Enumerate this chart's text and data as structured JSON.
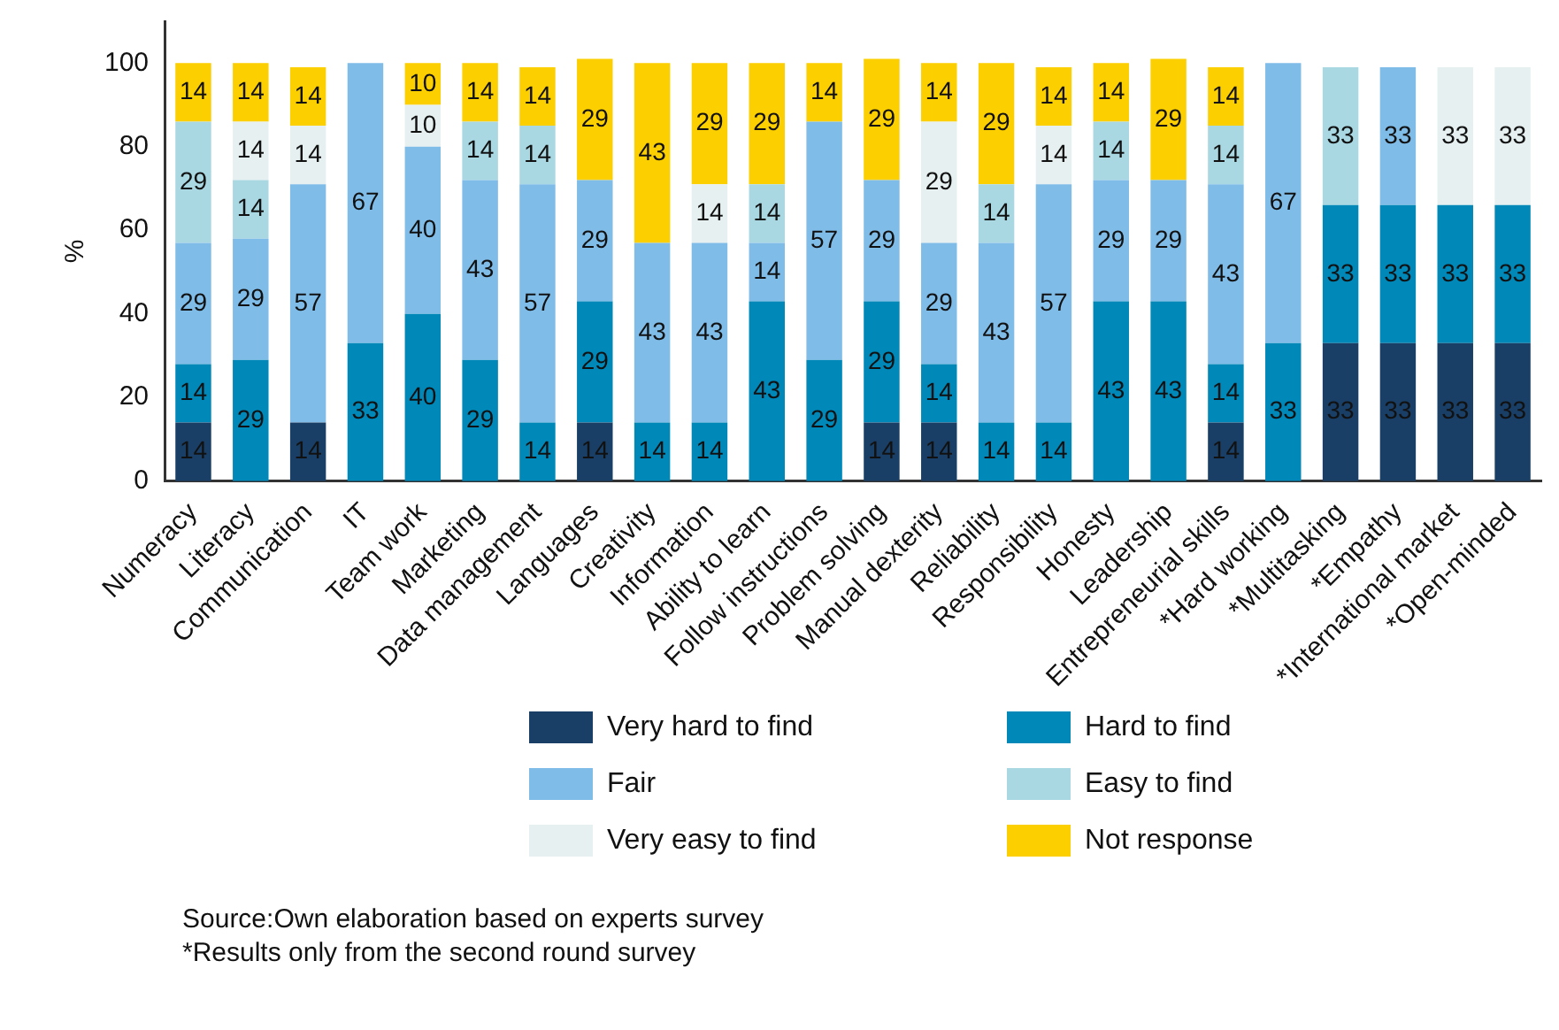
{
  "chart_data": {
    "type": "bar",
    "stacked": true,
    "ylabel": "%",
    "ylim": [
      0,
      110
    ],
    "yticks": [
      0,
      20,
      40,
      60,
      80,
      100
    ],
    "grid": false,
    "legend": "bottom",
    "data_labels": true,
    "categories": [
      "Numeracy",
      "Literacy",
      "Communication",
      "IT",
      "Team work",
      "Marketing",
      "Data management",
      "Languages",
      "Creativity",
      "Information",
      "Ability to learn",
      "Follow instructions",
      "Problem solving",
      "Manual dexterity",
      "Reliability",
      "Responsibility",
      "Honesty",
      "Leadership",
      "Entrepreneurial skills",
      "*Hard working",
      "*Multitasking",
      "*Empathy",
      "*International market",
      "*Open-minded"
    ],
    "series": [
      {
        "name": "Very hard to find",
        "color": "#1a3f66",
        "values": [
          14,
          null,
          14,
          null,
          null,
          null,
          null,
          14,
          null,
          null,
          null,
          null,
          14,
          14,
          null,
          null,
          null,
          null,
          14,
          null,
          33,
          33,
          33,
          33
        ]
      },
      {
        "name": "Hard to find",
        "color": "#0088b9",
        "values": [
          14,
          29,
          null,
          33,
          40,
          29,
          14,
          29,
          14,
          14,
          43,
          29,
          29,
          14,
          14,
          14,
          43,
          43,
          14,
          33,
          33,
          33,
          33,
          33
        ]
      },
      {
        "name": "Fair",
        "color": "#80bce8",
        "values": [
          29,
          29,
          57,
          67,
          40,
          43,
          57,
          29,
          43,
          43,
          14,
          57,
          29,
          29,
          43,
          57,
          29,
          29,
          43,
          67,
          null,
          33,
          null,
          null
        ]
      },
      {
        "name": "Easy to find",
        "color": "#a9d8e3",
        "values": [
          29,
          14,
          null,
          null,
          null,
          14,
          14,
          null,
          null,
          null,
          14,
          null,
          null,
          null,
          14,
          null,
          14,
          null,
          14,
          null,
          33,
          null,
          null,
          null
        ]
      },
      {
        "name": "Very easy to find",
        "color": "#e6f0f0",
        "values": [
          null,
          14,
          14,
          null,
          10,
          null,
          null,
          null,
          null,
          14,
          null,
          null,
          null,
          29,
          null,
          14,
          null,
          null,
          null,
          null,
          null,
          null,
          33,
          33
        ]
      },
      {
        "name": "Not response",
        "color": "#fccf00",
        "values": [
          14,
          14,
          14,
          null,
          10,
          14,
          14,
          29,
          43,
          29,
          29,
          14,
          29,
          14,
          29,
          14,
          14,
          29,
          14,
          null,
          null,
          null,
          null,
          null
        ]
      }
    ],
    "annotations": [
      "Source:Own elaboration based on experts survey",
      "*Results only from the second round survey"
    ]
  }
}
